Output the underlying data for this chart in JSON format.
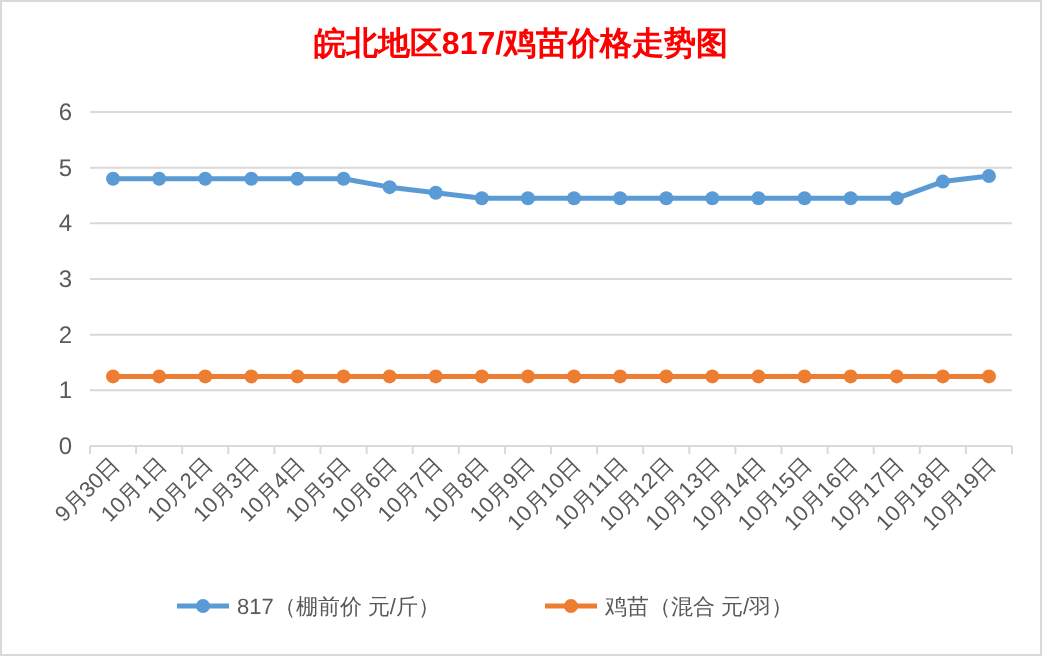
{
  "chart_data": {
    "type": "line",
    "title": "皖北地区817/鸡苗价格走势图",
    "categories": [
      "9月30日",
      "10月1日",
      "10月2日",
      "10月3日",
      "10月4日",
      "10月5日",
      "10月6日",
      "10月7日",
      "10月8日",
      "10月9日",
      "10月10日",
      "10月11日",
      "10月12日",
      "10月13日",
      "10月14日",
      "10月15日",
      "10月16日",
      "10月17日",
      "10月18日",
      "10月19日"
    ],
    "series": [
      {
        "name": "817（棚前价 元/斤）",
        "color": "#5b9bd5",
        "values": [
          4.8,
          4.8,
          4.8,
          4.8,
          4.8,
          4.8,
          4.65,
          4.55,
          4.45,
          4.45,
          4.45,
          4.45,
          4.45,
          4.45,
          4.45,
          4.45,
          4.45,
          4.45,
          4.75,
          4.85
        ]
      },
      {
        "name": "鸡苗（混合 元/羽）",
        "color": "#ed7d31",
        "values": [
          1.25,
          1.25,
          1.25,
          1.25,
          1.25,
          1.25,
          1.25,
          1.25,
          1.25,
          1.25,
          1.25,
          1.25,
          1.25,
          1.25,
          1.25,
          1.25,
          1.25,
          1.25,
          1.25,
          1.25
        ]
      }
    ],
    "ylim": [
      0,
      6
    ],
    "yticks": [
      0,
      1,
      2,
      3,
      4,
      5,
      6
    ],
    "grid": "y",
    "legend": "bottom",
    "marker": "circle",
    "line_style": "solid"
  }
}
